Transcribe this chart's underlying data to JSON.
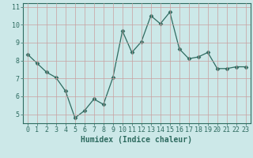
{
  "x": [
    0,
    1,
    2,
    3,
    4,
    5,
    6,
    7,
    8,
    9,
    10,
    11,
    12,
    13,
    14,
    15,
    16,
    17,
    18,
    19,
    20,
    21,
    22,
    23
  ],
  "y": [
    8.35,
    7.85,
    7.35,
    7.05,
    6.3,
    4.8,
    5.2,
    5.85,
    5.55,
    7.05,
    9.65,
    8.45,
    9.05,
    10.5,
    10.05,
    10.7,
    8.65,
    8.1,
    8.2,
    8.45,
    7.55,
    7.55,
    7.65,
    7.65
  ],
  "line_color": "#2e6b60",
  "marker": "D",
  "marker_size": 2.5,
  "bg_color": "#cce8e8",
  "grid_color": "#c8a0a0",
  "xlabel": "Humidex (Indice chaleur)",
  "xlim": [
    -0.5,
    23.5
  ],
  "ylim": [
    4.5,
    11.2
  ],
  "yticks": [
    5,
    6,
    7,
    8,
    9,
    10,
    11
  ],
  "xticks": [
    0,
    1,
    2,
    3,
    4,
    5,
    6,
    7,
    8,
    9,
    10,
    11,
    12,
    13,
    14,
    15,
    16,
    17,
    18,
    19,
    20,
    21,
    22,
    23
  ],
  "xlabel_fontsize": 7,
  "tick_fontsize": 6,
  "axis_color": "#2e6b60"
}
